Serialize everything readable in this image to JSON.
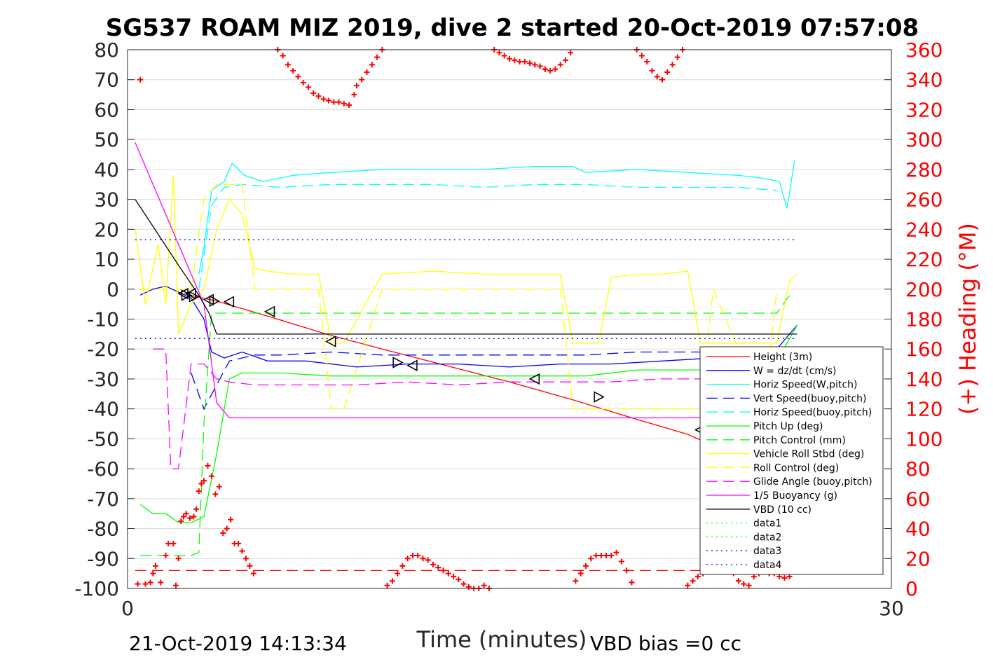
{
  "chart_data": {
    "type": "line",
    "title": "SG537 ROAM MIZ 2019, dive 2 started 20-Oct-2019 07:57:08",
    "xlabel": "Time (minutes)",
    "ylabel_left": "",
    "ylabel_right": "(+) Heading (°M)",
    "xlim": [
      0,
      30
    ],
    "ylim_left": [
      -100,
      80
    ],
    "ylim_right": [
      0,
      360
    ],
    "xticks": [
      "0",
      "30"
    ],
    "yticks_left": [
      "80",
      "70",
      "60",
      "50",
      "40",
      "30",
      "20",
      "10",
      "0",
      "-10",
      "-20",
      "-30",
      "-40",
      "-50",
      "-60",
      "-70",
      "-80",
      "-90",
      "-100"
    ],
    "yticks_right": [
      "360",
      "340",
      "320",
      "300",
      "280",
      "260",
      "240",
      "220",
      "200",
      "180",
      "160",
      "140",
      "120",
      "100",
      "80",
      "60",
      "40",
      "20",
      "0"
    ],
    "grid": true,
    "legend_position": "lower-right",
    "footer_left": "21-Oct-2019 14:13:34",
    "footer_right": "VBD bias =0 cc",
    "series": [
      {
        "name": "Height (3m)",
        "color": "#ff0000",
        "style": "solid",
        "axis": "left",
        "x": [
          2.2,
          3.5,
          5.5,
          8.0,
          10.0,
          12.5,
          15.0,
          17.5,
          20.0,
          22.0,
          24.0,
          25.5,
          26.3
        ],
        "y": [
          -1.5,
          -4.0,
          -9.0,
          -15.5,
          -20.0,
          -25.5,
          -31.0,
          -37.0,
          -43.5,
          -48.5,
          -56.0,
          -62.5,
          -66.5
        ]
      },
      {
        "name": "W = dz/dt (cm/s)",
        "color": "#0000ff",
        "style": "solid",
        "axis": "left",
        "x": [
          0.5,
          1.0,
          1.5,
          2.0,
          2.5,
          3.0,
          3.3,
          3.8,
          4.5,
          5.5,
          7.0,
          9.0,
          11.0,
          13.0,
          15.0,
          17.0,
          19.0,
          21.0,
          23.0,
          24.5,
          25.5,
          26.3
        ],
        "y": [
          -2,
          0,
          1,
          -1,
          -3,
          -10,
          -21,
          -23,
          -21,
          -24,
          -24,
          -26,
          -25,
          -25,
          -26,
          -25,
          -25,
          -24,
          -23,
          -22,
          -20,
          -12
        ]
      },
      {
        "name": "Horiz Speed(W,pitch)",
        "color": "#00ffff",
        "style": "solid",
        "axis": "left",
        "x": [
          2.8,
          3.0,
          3.3,
          3.8,
          4.1,
          4.6,
          5.3,
          6.5,
          8.0,
          10.0,
          12.0,
          14.0,
          16.0,
          17.5,
          18.0,
          20.0,
          22.0,
          24.0,
          25.0,
          25.6,
          25.9,
          26.2
        ],
        "y": [
          5,
          14,
          33,
          36,
          42,
          38,
          36,
          38,
          39,
          40,
          40,
          40,
          41,
          41,
          39,
          40,
          39,
          38,
          37,
          36,
          27,
          43
        ]
      },
      {
        "name": "Vert Speed(buoy,pitch)",
        "color": "#0000ff",
        "style": "dashed",
        "axis": "left",
        "x": [
          2.5,
          3.0,
          3.5,
          4.0,
          5.0,
          6.0,
          8.0,
          10.0,
          12.0,
          14.0,
          16.0,
          18.0,
          20.0,
          22.0,
          24.0,
          26.0
        ],
        "y": [
          -28,
          -40,
          -32,
          -24,
          -22,
          -22,
          -21,
          -22,
          -22,
          -22,
          -22,
          -22,
          -21,
          -21,
          -21,
          -20
        ]
      },
      {
        "name": "Horiz Speed(buoy,pitch)",
        "color": "#00ffff",
        "style": "dashed",
        "axis": "left",
        "x": [
          2.8,
          3.3,
          3.8,
          4.5,
          6.0,
          8.0,
          10.0,
          12.0,
          14.0,
          16.0,
          18.0,
          20.0,
          22.0,
          24.0,
          25.5
        ],
        "y": [
          0,
          28,
          34,
          35,
          34,
          35,
          35,
          35,
          34,
          35,
          35,
          34,
          34,
          34,
          33
        ]
      },
      {
        "name": "Pitch Up (deg)",
        "color": "#00ff00",
        "style": "solid",
        "axis": "left",
        "x": [
          0.5,
          1.0,
          1.5,
          2.0,
          2.5,
          3.0,
          3.5,
          4.0,
          4.5,
          5.0,
          6.0,
          8.0,
          10.0,
          12.0,
          14.0,
          16.0,
          18.0,
          20.0,
          22.0,
          24.0,
          25.5,
          26.3
        ],
        "y": [
          -72,
          -75,
          -75,
          -78,
          -78,
          -76,
          -55,
          -30,
          -28,
          -28,
          -28,
          -29,
          -29,
          -29,
          -29,
          -29,
          -29,
          -27,
          -27,
          -27,
          -24,
          -12
        ]
      },
      {
        "name": "Pitch Control (mm)",
        "color": "#00ff00",
        "style": "dashed",
        "axis": "left",
        "x": [
          0.5,
          2.5,
          2.8,
          3.0,
          3.3,
          4.0,
          6.0,
          10.0,
          14.0,
          18.0,
          22.0,
          25.5,
          26.0
        ],
        "y": [
          -89,
          -89,
          -88,
          -45,
          -8,
          -8,
          -8,
          -8,
          -8,
          -8,
          -8,
          -8,
          -2
        ]
      },
      {
        "name": "Vehicle Roll Stbd (deg)",
        "color": "#ffff00",
        "style": "solid",
        "axis": "left",
        "x": [
          0.3,
          0.7,
          1.2,
          1.5,
          1.8,
          2.0,
          2.5,
          3.0,
          3.5,
          4.0,
          4.5,
          5.0,
          5.5,
          6.5,
          7.5,
          8.0,
          8.5,
          10.0,
          12.0,
          14.0,
          16.0,
          17.0,
          17.5,
          18.5,
          19.0,
          20.0,
          21.0,
          22.0,
          22.5,
          23.5,
          24.5,
          25.5,
          26.0,
          26.3
        ],
        "y": [
          20,
          -5,
          15,
          -5,
          38,
          -15,
          -5,
          0,
          20,
          30,
          25,
          7,
          6,
          5,
          5,
          -18,
          -18,
          5,
          6,
          5,
          5,
          5,
          -18,
          -18,
          4,
          5,
          5,
          6,
          -18,
          -18,
          -18,
          -18,
          3,
          5
        ]
      },
      {
        "name": "Roll Control (deg)",
        "color": "#ffff00",
        "style": "dashed",
        "axis": "left",
        "x": [
          0.5,
          2.5,
          3.0,
          3.5,
          4.0,
          4.5,
          5.0,
          5.5,
          7.5,
          8.0,
          8.5,
          10.0,
          16.0,
          17.0,
          17.5,
          18.5,
          22.5,
          23.0,
          25.0,
          25.5
        ],
        "y": [
          0,
          0,
          30,
          35,
          35,
          35,
          0,
          0,
          0,
          -40,
          -40,
          0,
          0,
          0,
          -40,
          -40,
          -40,
          0,
          -40,
          0
        ]
      },
      {
        "name": "Glide Angle (buoy,pitch)",
        "color": "#ff00ff",
        "style": "dashed",
        "axis": "left",
        "x": [
          1.0,
          1.5,
          1.7,
          2.0,
          2.5,
          3.0,
          3.5,
          4.0,
          5.0,
          7.0,
          9.0,
          11.0,
          13.0,
          15.0,
          17.0,
          19.0,
          21.0,
          23.0,
          25.0,
          26.0
        ],
        "y": [
          -20,
          -20,
          -60,
          -60,
          -25,
          -25,
          -30,
          -31,
          -32,
          -32,
          -32,
          -31,
          -32,
          -31,
          -31,
          -31,
          -30,
          -30,
          -30,
          -24
        ]
      },
      {
        "name": "1/5 Buoyancy (g)",
        "color": "#ff00ff",
        "style": "solid",
        "axis": "left",
        "x": [
          0.3,
          1.0,
          2.0,
          3.0,
          3.5,
          4.0,
          6.0,
          10.0,
          14.0,
          18.0,
          22.0,
          24.0,
          25.5,
          26.3
        ],
        "y": [
          49,
          35,
          15,
          -5,
          -38,
          -43,
          -43,
          -43,
          -43,
          -43,
          -43,
          -42,
          -42,
          -37
        ]
      },
      {
        "name": "VBD (10 cc)",
        "color": "#000000",
        "style": "solid",
        "axis": "left",
        "x": [
          0.3,
          1.0,
          2.0,
          2.8,
          3.2,
          3.5,
          5.0,
          10.0,
          15.0,
          20.0,
          25.0,
          26.3
        ],
        "y": [
          30,
          21,
          8,
          -2,
          -8,
          -15,
          -15,
          -15,
          -15,
          -15,
          -15,
          -15
        ]
      },
      {
        "name": "data1",
        "color": "#00ff00",
        "style": "dotted",
        "axis": "left",
        "x": [],
        "y": []
      },
      {
        "name": "data2",
        "color": "#00ff00",
        "style": "dotted",
        "axis": "left",
        "x": [],
        "y": []
      },
      {
        "name": "data3",
        "color": "#0000ff",
        "style": "dotted",
        "axis": "left",
        "x": [
          0.3,
          26.3
        ],
        "y": [
          16.5,
          16.5
        ]
      },
      {
        "name": "data4",
        "color": "#0000ff",
        "style": "dotted",
        "axis": "left",
        "x": [
          0.3,
          26.3
        ],
        "y": [
          -16.5,
          -16.5
        ]
      }
    ],
    "reference_lines": [
      {
        "color": "#ff0000",
        "style": "dashed",
        "axis": "left",
        "x": [
          0.3,
          26.3
        ],
        "y": [
          -94,
          -94
        ]
      }
    ],
    "heading_points": {
      "color": "#ff0000",
      "marker": "+",
      "axis": "right",
      "x": [
        0.4,
        0.5,
        0.7,
        0.9,
        1.0,
        1.1,
        1.3,
        1.5,
        1.6,
        1.8,
        1.9,
        2.0,
        2.1,
        2.2,
        2.3,
        2.45,
        2.6,
        2.7,
        2.8,
        2.9,
        3.0,
        3.15,
        3.3,
        3.45,
        3.6,
        3.75,
        3.9,
        4.05,
        4.2,
        4.35,
        4.5,
        4.65,
        4.8,
        4.95,
        5.9,
        6.1,
        6.3,
        6.5,
        6.7,
        6.9,
        7.1,
        7.3,
        7.5,
        7.7,
        7.9,
        8.1,
        8.3,
        8.5,
        8.7,
        8.9,
        9.0,
        9.2,
        9.4,
        9.6,
        9.8,
        10.0,
        10.2,
        10.4,
        10.6,
        10.8,
        11.0,
        11.2,
        11.2,
        11.4,
        11.6,
        11.8,
        12.0,
        12.2,
        12.4,
        12.6,
        12.8,
        13.0,
        13.2,
        13.4,
        13.6,
        13.8,
        14.0,
        14.2,
        14.4,
        14.6,
        14.8,
        15.0,
        15.2,
        15.4,
        15.6,
        15.8,
        16.0,
        16.2,
        16.4,
        16.4,
        16.6,
        16.8,
        17.0,
        17.2,
        17.4,
        17.6,
        17.8,
        18.0,
        18.2,
        18.4,
        18.6,
        18.8,
        19.0,
        19.2,
        19.4,
        19.6,
        19.8,
        19.8,
        20.0,
        20.2,
        20.4,
        20.6,
        20.8,
        21.0,
        21.2,
        21.4,
        21.6,
        21.8,
        22.0,
        22.2,
        22.4,
        22.6,
        22.8,
        23.0,
        23.2,
        23.4,
        23.6,
        23.8,
        24.0,
        24.0,
        24.2,
        24.4,
        24.6,
        24.8,
        25.0,
        25.2,
        25.4,
        25.6,
        25.8,
        26.0,
        26.2,
        26.4
      ],
      "y": [
        3,
        340,
        3,
        4,
        10,
        15,
        4,
        22,
        30,
        30,
        2,
        20,
        45,
        48,
        50,
        47,
        48,
        53,
        65,
        70,
        72,
        82,
        75,
        63,
        68,
        37,
        40,
        46,
        30,
        30,
        25,
        20,
        15,
        10,
        360,
        356,
        350,
        346,
        342,
        338,
        335,
        331,
        329,
        327,
        326,
        325,
        325,
        324,
        323,
        330,
        336,
        340,
        345,
        350,
        355,
        360,
        2,
        5,
        10,
        15,
        20,
        22,
        22,
        22,
        20,
        19,
        16,
        14,
        12,
        10,
        8,
        6,
        3,
        1,
        0,
        0,
        2,
        0,
        360,
        358,
        356,
        354,
        353,
        352,
        352,
        351,
        350,
        349,
        347,
        347,
        346,
        347,
        350,
        353,
        358,
        5,
        10,
        15,
        20,
        22,
        22,
        22,
        22,
        24,
        18,
        12,
        4,
        4,
        360,
        356,
        352,
        346,
        342,
        340,
        345,
        350,
        355,
        360,
        2,
        5,
        8,
        10,
        12,
        14,
        14,
        16,
        14,
        10,
        5,
        5,
        3,
        2,
        8,
        10,
        12,
        10,
        10,
        8,
        7,
        8,
        12,
        14
      ]
    },
    "triangle_markers": {
      "color": "#000000",
      "x": [
        2.2,
        2.3,
        2.5,
        2.6,
        3.2,
        3.4,
        4.0,
        5.6,
        8.0,
        10.6,
        11.2,
        16.0,
        18.5,
        22.5,
        24.5,
        25.7,
        25.8,
        26.2
      ],
      "y": [
        -1.5,
        -2.0,
        -1.5,
        -2.5,
        -3.5,
        -4.0,
        -4.2,
        -7.5,
        -17.5,
        -24.5,
        -25.5,
        -30.0,
        -36.0,
        -47.0,
        -51.5,
        -61.5,
        -65.0,
        -66.5
      ],
      "dir": [
        "left",
        "right",
        "left",
        "right",
        "left",
        "right",
        "left",
        "left",
        "left",
        "right",
        "left",
        "left",
        "right",
        "left",
        "right",
        "left",
        "right",
        "left"
      ]
    }
  }
}
